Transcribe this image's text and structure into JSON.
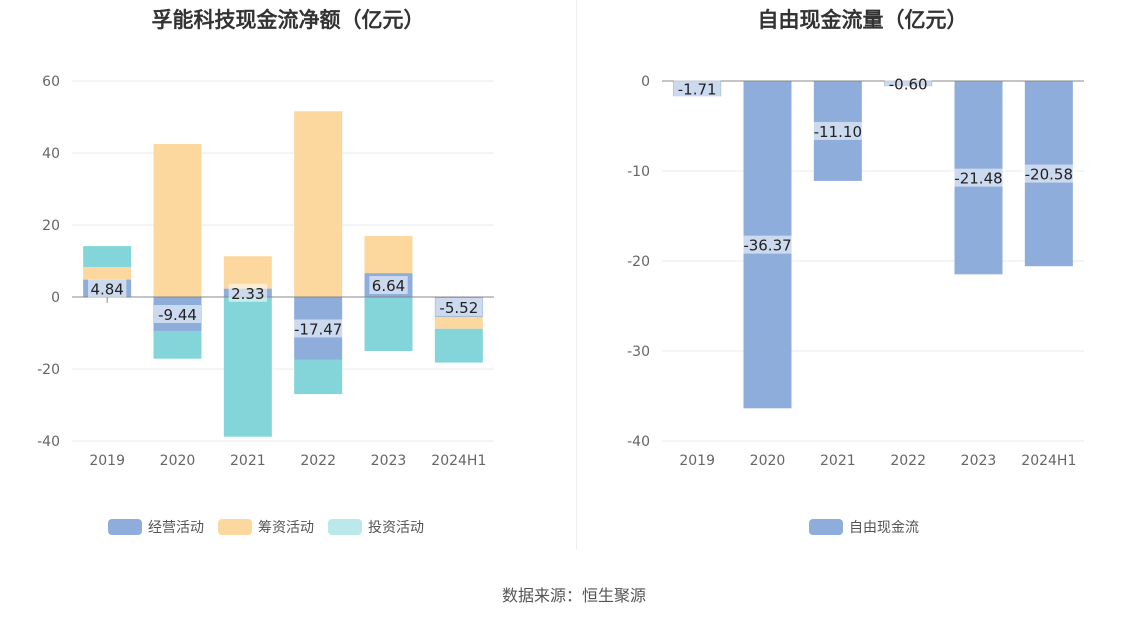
{
  "source": "数据来源：恒生聚源",
  "chart_data": [
    {
      "type": "bar",
      "stacked": true,
      "title": "孚能科技现金流净额（亿元）",
      "categories": [
        "2019",
        "2020",
        "2021",
        "2022",
        "2023",
        "2024H1"
      ],
      "series": [
        {
          "name": "经营活动",
          "color": "#8eaddb",
          "values": [
            4.84,
            -9.44,
            2.33,
            -17.47,
            6.64,
            -5.52
          ],
          "labels": [
            "4.84",
            "-9.44",
            "2.33",
            "-17.47",
            "6.64",
            "-5.52"
          ]
        },
        {
          "name": "筹资活动",
          "color": "#fdd89e",
          "values": [
            3.5,
            42.5,
            9.0,
            51.6,
            10.3,
            -3.3
          ]
        },
        {
          "name": "投资活动",
          "color": "#84d5da",
          "values": [
            5.8,
            -7.7,
            -38.8,
            -9.5,
            -15.0,
            -9.4
          ]
        }
      ],
      "ylim": [
        -40,
        60
      ],
      "yticks": [
        60,
        40,
        20,
        0,
        -20,
        -40
      ],
      "legend_position": "bottom",
      "grid": true
    },
    {
      "type": "bar",
      "title": "自由现金流量（亿元）",
      "categories": [
        "2019",
        "2020",
        "2021",
        "2022",
        "2023",
        "2024H1"
      ],
      "series": [
        {
          "name": "自由现金流",
          "color": "#8eaddb",
          "values": [
            -1.71,
            -36.37,
            -11.1,
            -0.6,
            -21.48,
            -20.58
          ],
          "labels": [
            "-1.71",
            "-36.37",
            "-11.10",
            "-0.60",
            "-21.48",
            "-20.58"
          ]
        }
      ],
      "ylim": [
        -40,
        0
      ],
      "yticks": [
        0,
        -10,
        -20,
        -30,
        -40
      ],
      "legend_position": "bottom",
      "grid": true
    }
  ]
}
